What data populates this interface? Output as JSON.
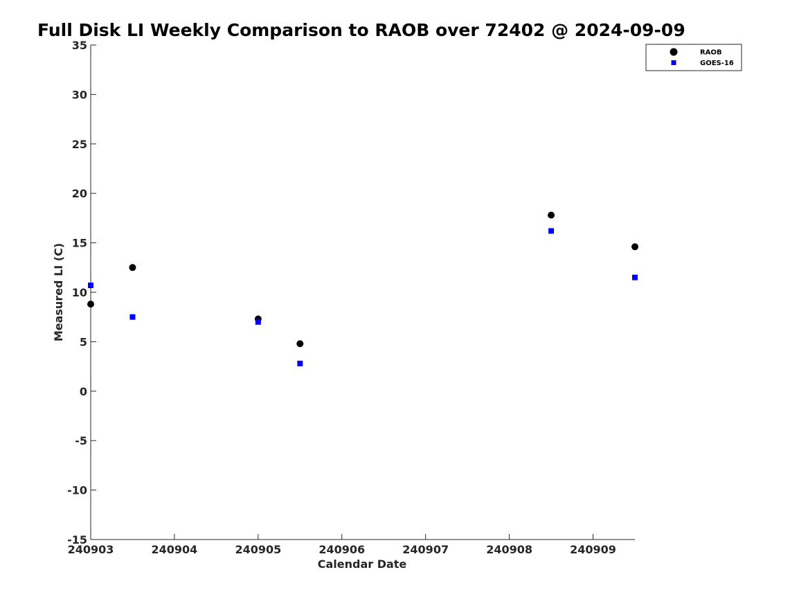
{
  "chart_data": {
    "type": "scatter",
    "title": "Full Disk LI Weekly Comparison to RAOB over 72402 @ 2024-09-09",
    "xlabel": "Calendar Date",
    "ylabel": "Measured LI (C)",
    "xlim": [
      "240903",
      "240909.5"
    ],
    "ylim": [
      -15,
      35
    ],
    "x_ticks": [
      "240903",
      "240904",
      "240905",
      "240906",
      "240907",
      "240908",
      "240909"
    ],
    "y_ticks": [
      35,
      30,
      25,
      20,
      15,
      10,
      5,
      0,
      -5,
      -10,
      -15
    ],
    "grid": false,
    "legend_position": "top-right",
    "series": [
      {
        "name": "RAOB",
        "marker": "circle",
        "color": "#000000",
        "points": [
          {
            "x": "2024-09-03 00Z",
            "y": 8.8
          },
          {
            "x": "2024-09-03 12Z",
            "y": 12.5
          },
          {
            "x": "2024-09-05 00Z",
            "y": 7.3
          },
          {
            "x": "2024-09-05 12Z",
            "y": 4.8
          },
          {
            "x": "2024-09-08 12Z",
            "y": 17.8
          },
          {
            "x": "2024-09-09 12Z",
            "y": 14.6
          }
        ]
      },
      {
        "name": "GOES-16",
        "marker": "square",
        "color": "#0000ff",
        "points": [
          {
            "x": "2024-09-03 00Z",
            "y": 10.7
          },
          {
            "x": "2024-09-03 12Z",
            "y": 7.5
          },
          {
            "x": "2024-09-05 00Z",
            "y": 7.0
          },
          {
            "x": "2024-09-05 12Z",
            "y": 2.8
          },
          {
            "x": "2024-09-08 12Z",
            "y": 16.2
          },
          {
            "x": "2024-09-09 12Z",
            "y": 11.5
          }
        ]
      }
    ]
  }
}
